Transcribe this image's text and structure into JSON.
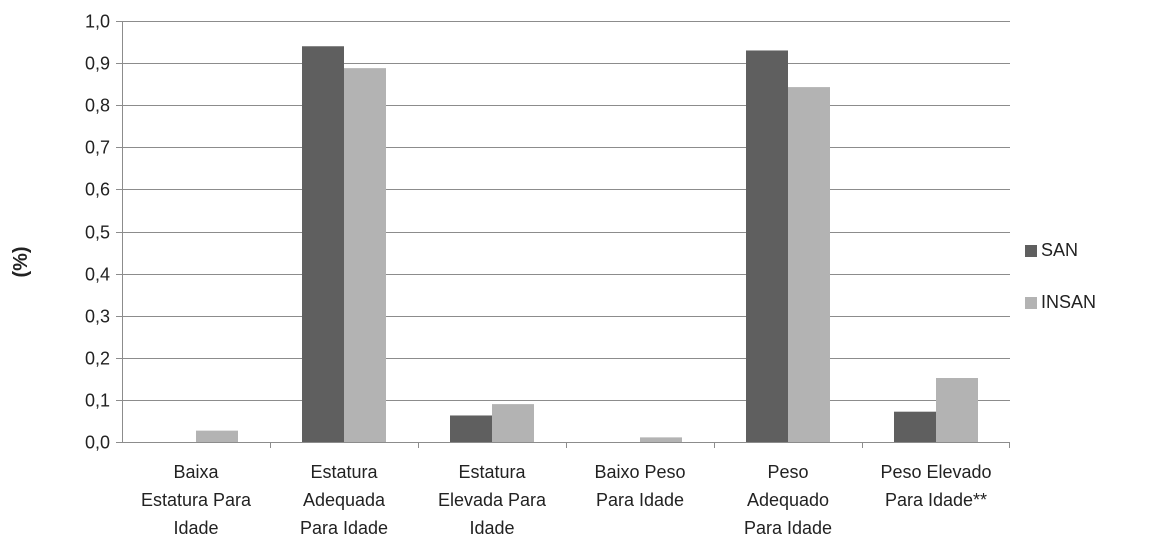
{
  "chart_data": {
    "type": "bar",
    "ylabel": "(%)",
    "ylim": [
      0,
      1.0
    ],
    "yticks": [
      "0,0",
      "0,1",
      "0,2",
      "0,3",
      "0,4",
      "0,5",
      "0,6",
      "0,7",
      "0,8",
      "0,9",
      "1,0"
    ],
    "categories": [
      [
        "Baixa",
        "Estatura Para",
        "Idade"
      ],
      [
        "Estatura",
        "Adequada",
        "Para Idade"
      ],
      [
        "Estatura",
        "Elevada Para",
        "Idade"
      ],
      [
        "Baixo Peso",
        "Para Idade"
      ],
      [
        "Peso",
        "Adequado",
        "Para Idade"
      ],
      [
        "Peso Elevado",
        "Para Idade**"
      ]
    ],
    "series": [
      {
        "name": "SAN",
        "color": "#5f5f5f",
        "values": [
          0.0,
          0.94,
          0.063,
          0.0,
          0.93,
          0.072
        ]
      },
      {
        "name": "INSAN",
        "color": "#b3b3b3",
        "values": [
          0.027,
          0.888,
          0.09,
          0.011,
          0.843,
          0.152
        ]
      }
    ],
    "grid": true,
    "legend_position": "right"
  }
}
